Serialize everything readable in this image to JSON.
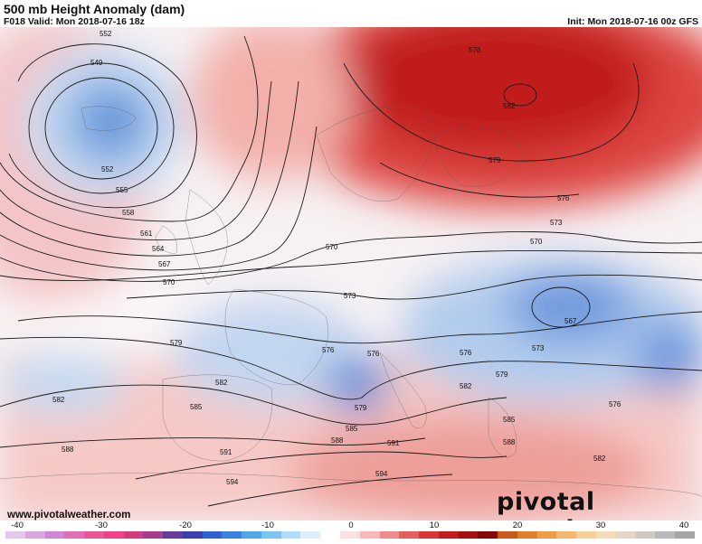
{
  "header": {
    "title": "500 mb Height Anomaly (dam)",
    "valid": "F018 Valid: Mon 2018-07-16 18z",
    "init": "Init: Mon 2018-07-16 00z GFS"
  },
  "footer": {
    "site": "www.pivotalweather.com",
    "brand": "pivotal weather"
  },
  "contour_labels": [
    {
      "value": "552"
    },
    {
      "value": "549"
    },
    {
      "value": "552"
    },
    {
      "value": "555"
    },
    {
      "value": "558"
    },
    {
      "value": "561"
    },
    {
      "value": "564"
    },
    {
      "value": "567"
    },
    {
      "value": "570"
    },
    {
      "value": "570"
    },
    {
      "value": "573"
    },
    {
      "value": "576"
    },
    {
      "value": "579"
    },
    {
      "value": "582"
    },
    {
      "value": "582"
    },
    {
      "value": "585"
    },
    {
      "value": "588"
    },
    {
      "value": "588"
    },
    {
      "value": "591"
    },
    {
      "value": "591"
    },
    {
      "value": "594"
    },
    {
      "value": "594"
    },
    {
      "value": "579"
    },
    {
      "value": "576"
    },
    {
      "value": "576"
    },
    {
      "value": "579"
    },
    {
      "value": "582"
    },
    {
      "value": "576"
    },
    {
      "value": "573"
    },
    {
      "value": "570"
    },
    {
      "value": "567"
    },
    {
      "value": "573"
    },
    {
      "value": "576"
    },
    {
      "value": "579"
    },
    {
      "value": "582"
    },
    {
      "value": "585"
    },
    {
      "value": "588"
    },
    {
      "value": "582"
    },
    {
      "value": "585"
    },
    {
      "value": "576"
    }
  ],
  "colorbar": {
    "ticks": [
      "-40",
      "-30",
      "-20",
      "-10",
      "0",
      "10",
      "20",
      "30",
      "40"
    ],
    "colors": [
      "#e3c8ec",
      "#d9a8e0",
      "#cf86d3",
      "#e26bb8",
      "#ec5596",
      "#f0428a",
      "#d43a7d",
      "#a83c8a",
      "#6a3a9a",
      "#3a3fb0",
      "#2f5fd0",
      "#3a82e0",
      "#4ea6ee",
      "#7cc4f4",
      "#b3dcf8",
      "#ddeefb",
      "#ffffff",
      "#fde0e0",
      "#f8b8b8",
      "#f08c8c",
      "#e65e5e",
      "#d93535",
      "#c41c1c",
      "#a80f0f",
      "#8a0707",
      "#c85a1a",
      "#e07f2c",
      "#ee9c46",
      "#f4b870",
      "#f6cf98",
      "#f3dcb8",
      "#e4d6c6",
      "#cfcac4",
      "#b9b9b9",
      "#a5a5a5"
    ]
  }
}
